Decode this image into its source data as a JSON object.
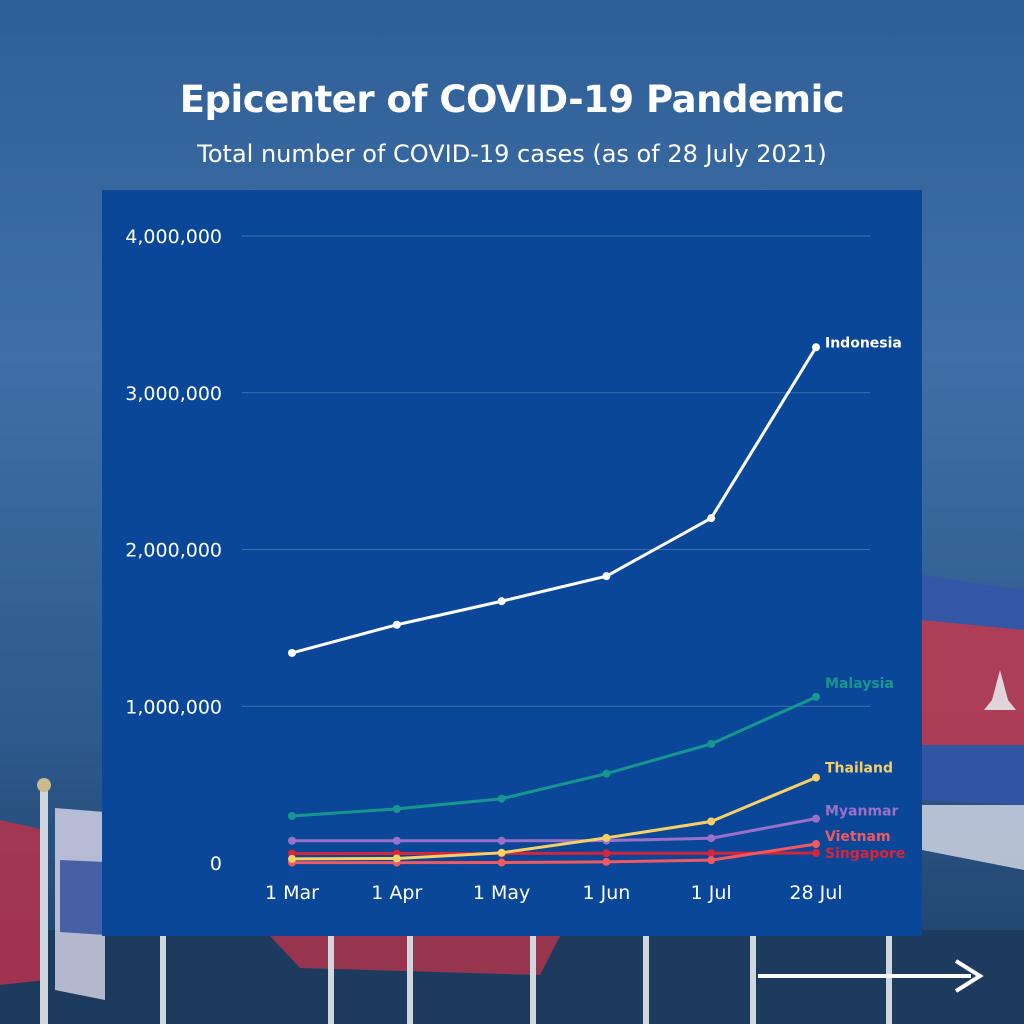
{
  "title": "Epicenter of COVID-19 Pandemic",
  "subtitle": "Total number of COVID-19 cases (as of 28 July 2021)",
  "colors": {
    "panel": "#0a4799",
    "Indonesia": "#ffffff",
    "Malaysia": "#17968f",
    "Thailand": "#f5d067",
    "Myanmar": "#9a70c9",
    "Vietnam": "#f0595f",
    "Singapore": "#d4253a"
  },
  "chart_data": {
    "type": "line",
    "categories": [
      "1 Mar",
      "1 Apr",
      "1 May",
      "1 Jun",
      "1 Jul",
      "28 Jul"
    ],
    "ylim": [
      0,
      4000000
    ],
    "yticks": [
      "0",
      "1,000,000",
      "2,000,000",
      "3,000,000",
      "4,000,000"
    ],
    "grid": true,
    "legend": "labels at line ends",
    "series": [
      {
        "name": "Indonesia",
        "values": [
          1340000,
          1520000,
          1670000,
          1830000,
          2200000,
          3290000
        ]
      },
      {
        "name": "Malaysia",
        "values": [
          300000,
          345000,
          410000,
          570000,
          760000,
          1060000
        ]
      },
      {
        "name": "Thailand",
        "values": [
          26000,
          29000,
          65000,
          160000,
          265000,
          545000
        ]
      },
      {
        "name": "Myanmar",
        "values": [
          142000,
          142000,
          142000,
          143000,
          158000,
          283000
        ]
      },
      {
        "name": "Vietnam",
        "values": [
          2500,
          2600,
          2900,
          7000,
          18000,
          121000
        ]
      },
      {
        "name": "Singapore",
        "values": [
          60000,
          60500,
          61000,
          62000,
          62500,
          63500
        ]
      }
    ]
  },
  "nav": {
    "next": "next-arrow"
  }
}
